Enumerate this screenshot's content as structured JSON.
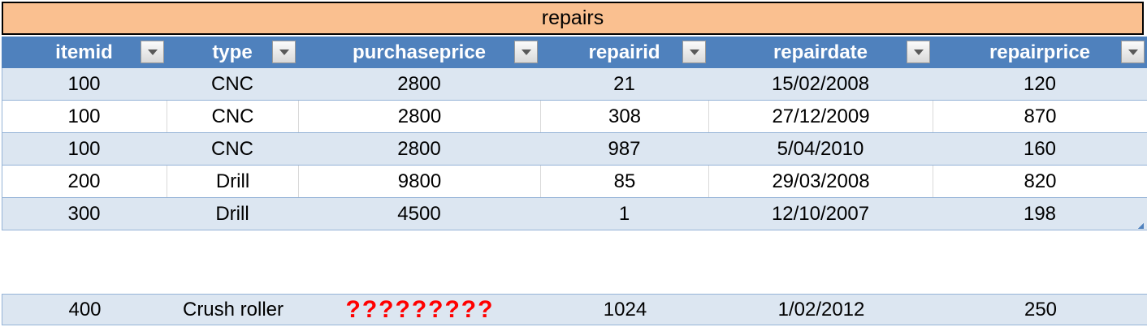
{
  "table_title": "repairs",
  "columns": [
    "itemid",
    "type",
    "purchaseprice",
    "repairid",
    "repairdate",
    "repairprice"
  ],
  "rows": [
    [
      "100",
      "CNC",
      "2800",
      "21",
      "15/02/2008",
      "120"
    ],
    [
      "100",
      "CNC",
      "2800",
      "308",
      "27/12/2009",
      "870"
    ],
    [
      "100",
      "CNC",
      "2800",
      "987",
      "5/04/2010",
      "160"
    ],
    [
      "200",
      "Drill",
      "9800",
      "85",
      "29/03/2008",
      "820"
    ],
    [
      "300",
      "Drill",
      "4500",
      "1",
      "12/10/2007",
      "198"
    ]
  ],
  "new_row": [
    "400",
    "Crush roller",
    "?????????",
    "1024",
    "1/02/2012",
    "250"
  ],
  "colors": {
    "title_fill": "#fac090",
    "header_fill": "#4f81bd",
    "band_fill": "#dce6f1",
    "unknown_text": "#ff0000"
  },
  "icons": {
    "filter_button": "dropdown-arrow-icon"
  }
}
